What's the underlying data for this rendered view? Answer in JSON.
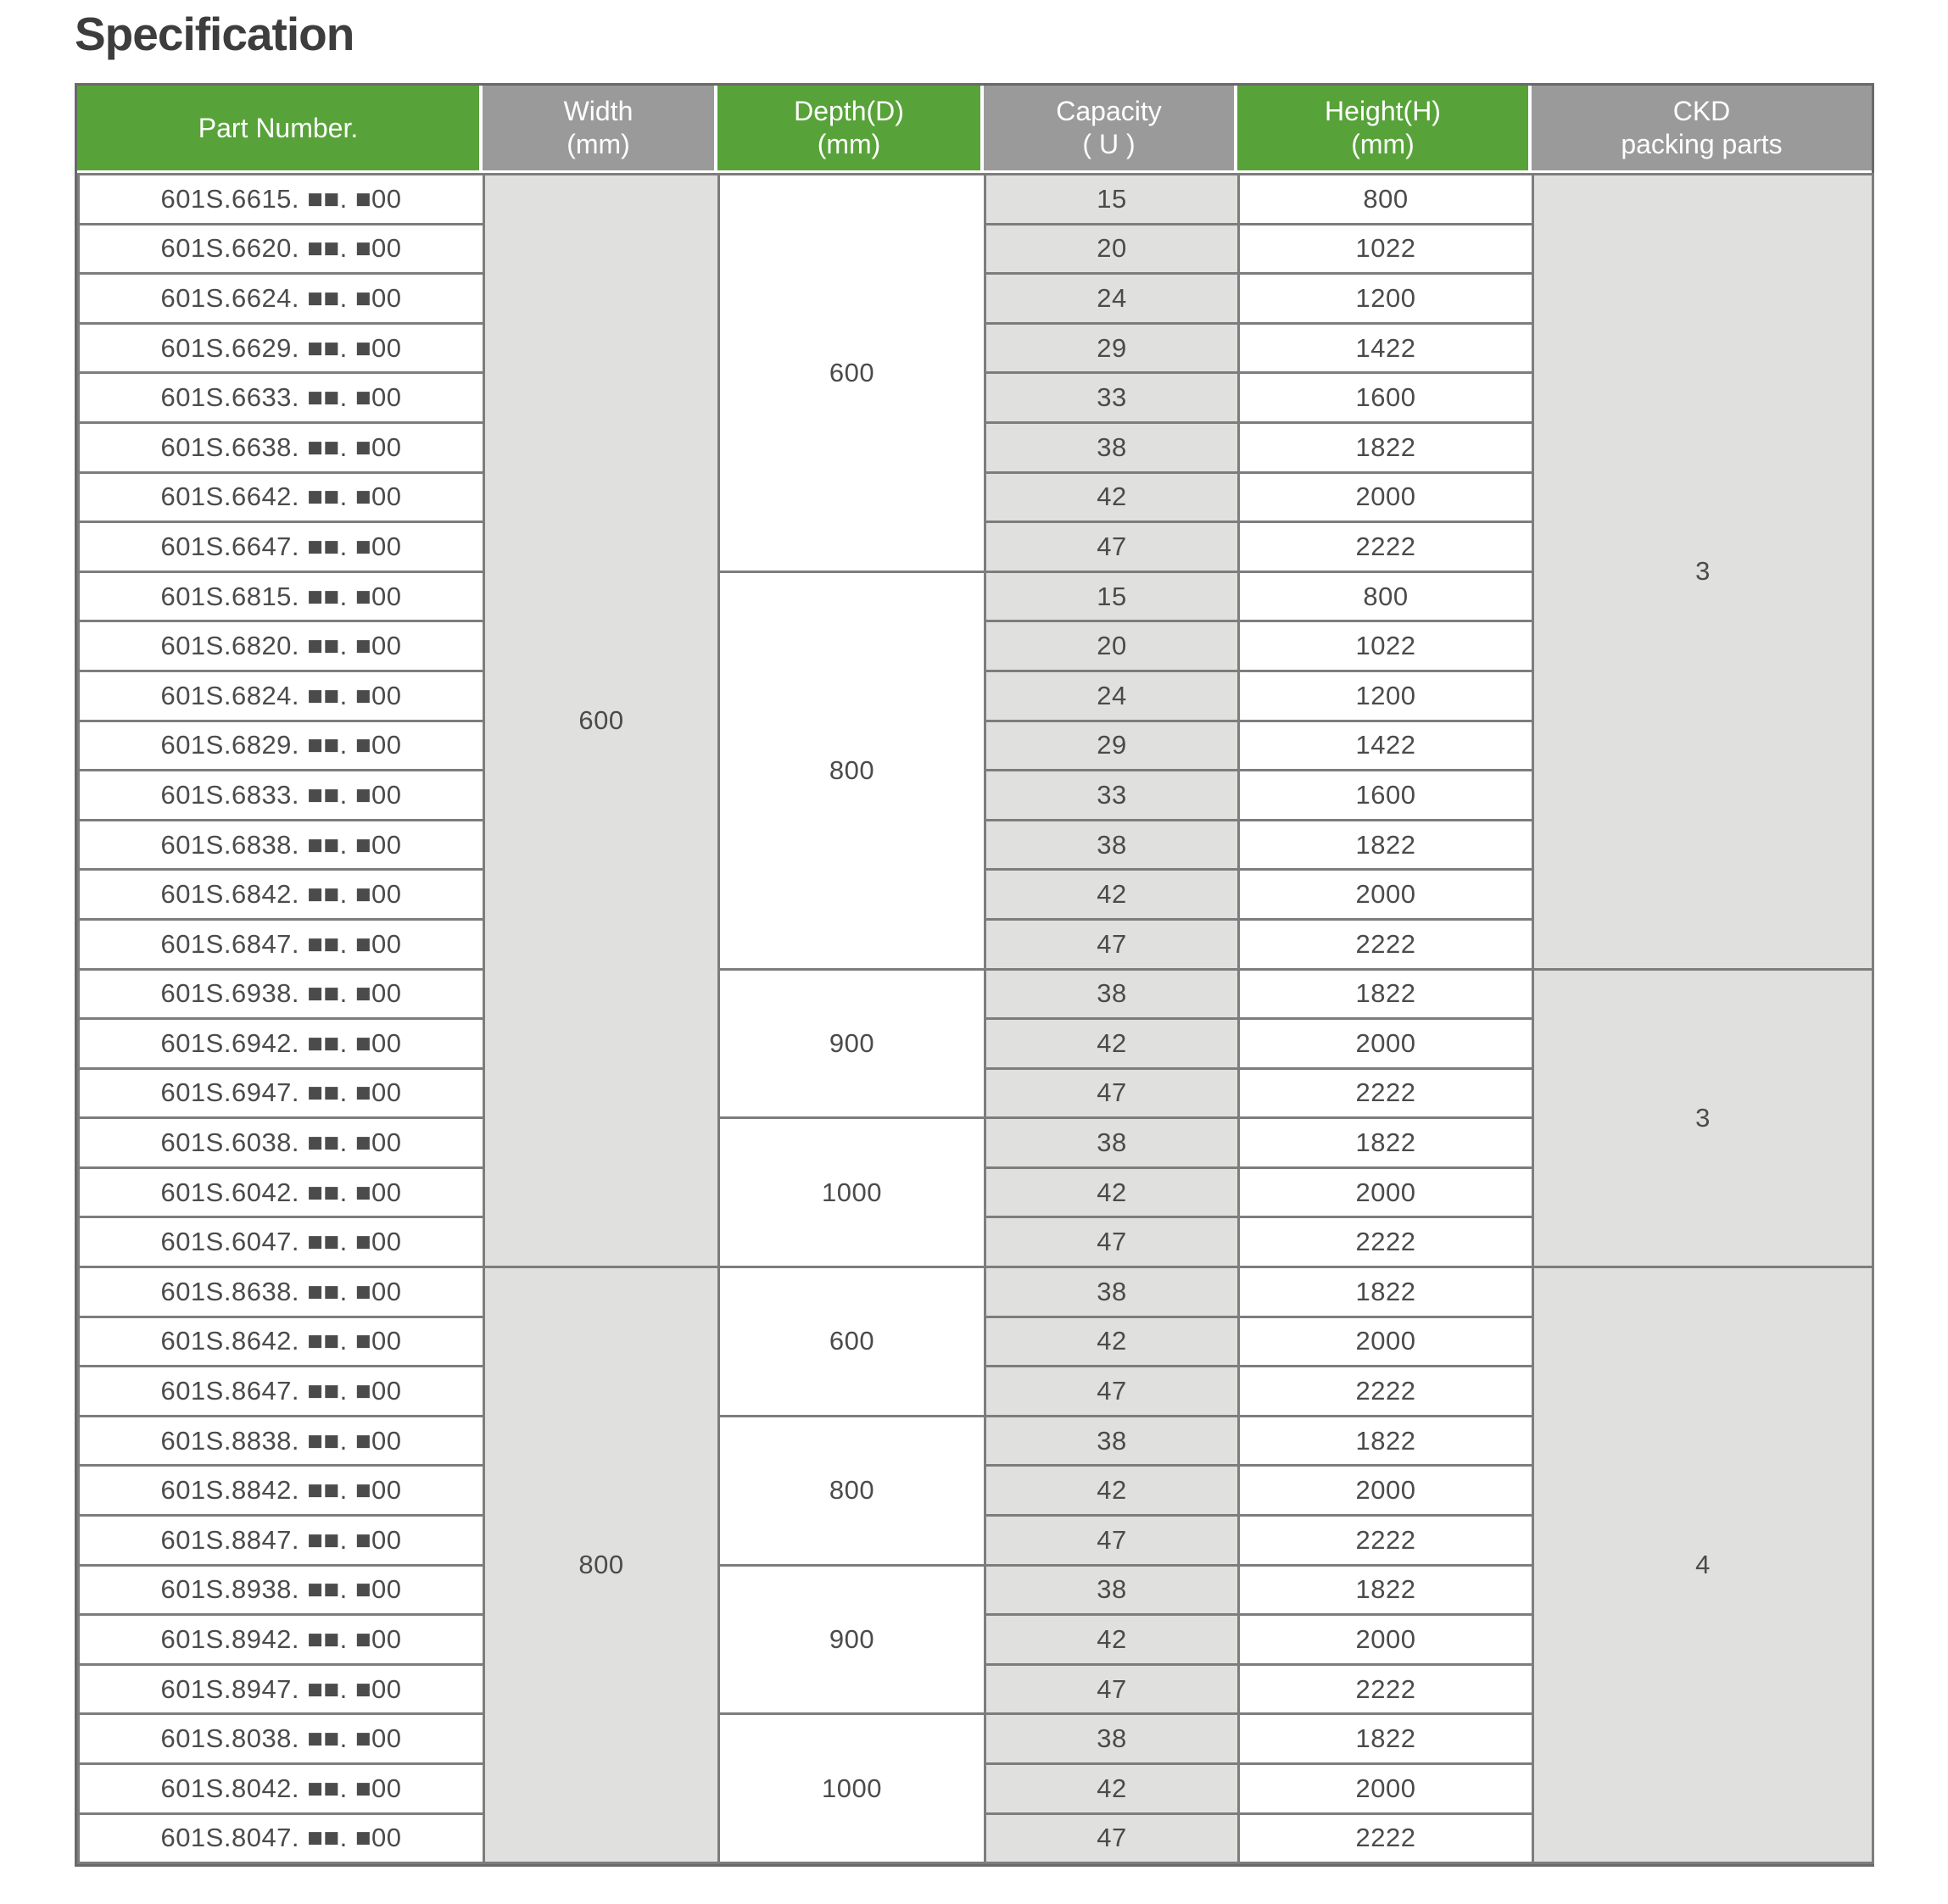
{
  "title": "Specification",
  "colors": {
    "header_green": "#58a339",
    "header_gray": "#9a9a9a",
    "cell_gray": "#e0e0de",
    "grid_border": "#7d7d7d",
    "outer_border": "#696969",
    "body_text": "#4b4b4b",
    "title_text": "#3d3d3d"
  },
  "table": {
    "headers": [
      {
        "line1": "Part Number.",
        "line2": "",
        "style": "green"
      },
      {
        "line1": "Width",
        "line2": "(mm)",
        "style": "gray"
      },
      {
        "line1": "Depth(D)",
        "line2": "(mm)",
        "style": "green"
      },
      {
        "line1": "Capacity",
        "line2": "( U )",
        "style": "gray"
      },
      {
        "line1": "Height(H)",
        "line2": "(mm)",
        "style": "green"
      },
      {
        "line1": "CKD",
        "line2": "packing parts",
        "style": "gray"
      }
    ],
    "rows": [
      {
        "part": "601S.6615. ■■. ■00",
        "width": {
          "value": "600",
          "span": 22
        },
        "depth": {
          "value": "600",
          "span": 8
        },
        "capacity": "15",
        "height": "800",
        "ckd": {
          "value": "3",
          "span": 16
        }
      },
      {
        "part": "601S.6620. ■■. ■00",
        "capacity": "20",
        "height": "1022"
      },
      {
        "part": "601S.6624. ■■. ■00",
        "capacity": "24",
        "height": "1200"
      },
      {
        "part": "601S.6629. ■■. ■00",
        "capacity": "29",
        "height": "1422"
      },
      {
        "part": "601S.6633. ■■. ■00",
        "capacity": "33",
        "height": "1600"
      },
      {
        "part": "601S.6638. ■■. ■00",
        "capacity": "38",
        "height": "1822"
      },
      {
        "part": "601S.6642. ■■. ■00",
        "capacity": "42",
        "height": "2000"
      },
      {
        "part": "601S.6647. ■■. ■00",
        "capacity": "47",
        "height": "2222"
      },
      {
        "part": "601S.6815. ■■. ■00",
        "depth": {
          "value": "800",
          "span": 8
        },
        "capacity": "15",
        "height": "800"
      },
      {
        "part": "601S.6820. ■■. ■00",
        "capacity": "20",
        "height": "1022"
      },
      {
        "part": "601S.6824. ■■. ■00",
        "capacity": "24",
        "height": "1200"
      },
      {
        "part": "601S.6829. ■■. ■00",
        "capacity": "29",
        "height": "1422"
      },
      {
        "part": "601S.6833. ■■. ■00",
        "capacity": "33",
        "height": "1600"
      },
      {
        "part": "601S.6838. ■■. ■00",
        "capacity": "38",
        "height": "1822"
      },
      {
        "part": "601S.6842. ■■. ■00",
        "capacity": "42",
        "height": "2000"
      },
      {
        "part": "601S.6847. ■■. ■00",
        "capacity": "47",
        "height": "2222"
      },
      {
        "part": "601S.6938. ■■. ■00",
        "depth": {
          "value": "900",
          "span": 3
        },
        "capacity": "38",
        "height": "1822",
        "ckd": {
          "value": "3",
          "span": 6
        }
      },
      {
        "part": "601S.6942. ■■. ■00",
        "capacity": "42",
        "height": "2000"
      },
      {
        "part": "601S.6947. ■■. ■00",
        "capacity": "47",
        "height": "2222"
      },
      {
        "part": "601S.6038. ■■. ■00",
        "depth": {
          "value": "1000",
          "span": 3
        },
        "capacity": "38",
        "height": "1822"
      },
      {
        "part": "601S.6042. ■■. ■00",
        "capacity": "42",
        "height": "2000"
      },
      {
        "part": "601S.6047. ■■. ■00",
        "capacity": "47",
        "height": "2222"
      },
      {
        "part": "601S.8638. ■■. ■00",
        "width": {
          "value": "800",
          "span": 12
        },
        "depth": {
          "value": "600",
          "span": 3
        },
        "capacity": "38",
        "height": "1822",
        "ckd": {
          "value": "4",
          "span": 12
        }
      },
      {
        "part": "601S.8642. ■■. ■00",
        "capacity": "42",
        "height": "2000"
      },
      {
        "part": "601S.8647. ■■. ■00",
        "capacity": "47",
        "height": "2222"
      },
      {
        "part": "601S.8838. ■■. ■00",
        "depth": {
          "value": "800",
          "span": 3
        },
        "capacity": "38",
        "height": "1822"
      },
      {
        "part": "601S.8842. ■■. ■00",
        "capacity": "42",
        "height": "2000"
      },
      {
        "part": "601S.8847. ■■. ■00",
        "capacity": "47",
        "height": "2222"
      },
      {
        "part": "601S.8938. ■■. ■00",
        "depth": {
          "value": "900",
          "span": 3
        },
        "capacity": "38",
        "height": "1822"
      },
      {
        "part": "601S.8942. ■■. ■00",
        "capacity": "42",
        "height": "2000"
      },
      {
        "part": "601S.8947. ■■. ■00",
        "capacity": "47",
        "height": "2222"
      },
      {
        "part": "601S.8038. ■■. ■00",
        "depth": {
          "value": "1000",
          "span": 3
        },
        "capacity": "38",
        "height": "1822"
      },
      {
        "part": "601S.8042. ■■. ■00",
        "capacity": "42",
        "height": "2000"
      },
      {
        "part": "601S.8047. ■■. ■00",
        "capacity": "47",
        "height": "2222"
      }
    ]
  }
}
